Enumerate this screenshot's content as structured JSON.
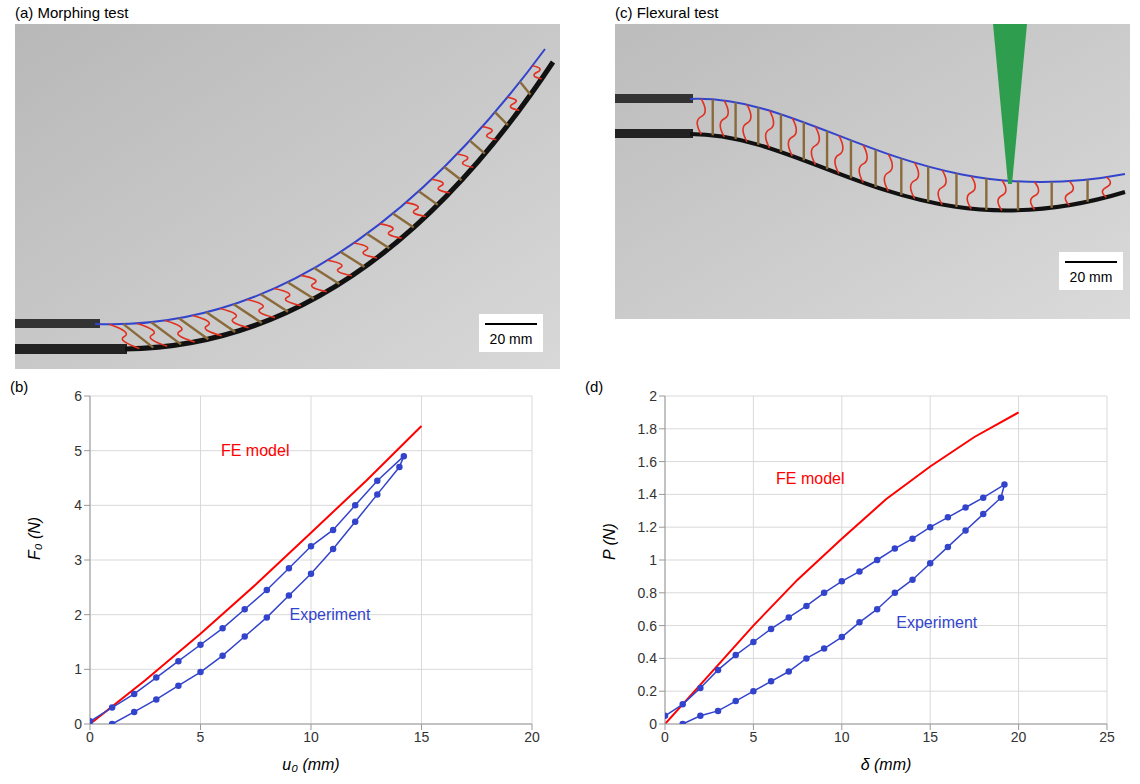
{
  "photos": [
    {
      "title": "(a) Morphing test",
      "scale_bar": "20 mm"
    },
    {
      "title": "(c) Flexural test",
      "scale_bar": "20 mm"
    }
  ],
  "chart_data": [
    {
      "type": "line",
      "title": "(b)",
      "x_label": "u₀ (mm)",
      "y_label": "F₀ (N)",
      "xlim": [
        0,
        20
      ],
      "xticks": [
        0,
        5,
        10,
        15,
        20
      ],
      "ylim": [
        0,
        6
      ],
      "yticks": [
        0,
        1,
        2,
        3,
        4,
        5,
        6
      ],
      "grid": true,
      "series": [
        {
          "name": "FE model",
          "color": "#ff0000",
          "marker": "none",
          "x": [
            0,
            2.5,
            5,
            7.5,
            10,
            12.5,
            15
          ],
          "values": [
            0,
            0.8,
            1.65,
            2.55,
            3.5,
            4.45,
            5.45
          ]
        },
        {
          "name": "Experiment",
          "color": "#3344cc",
          "marker": "circle",
          "x": [
            0,
            1,
            2,
            3,
            4,
            5,
            6,
            7,
            8,
            9,
            10,
            11,
            12,
            13,
            14.2,
            14,
            13,
            12,
            11,
            10,
            9,
            8,
            7,
            6,
            5,
            4,
            3,
            2,
            1
          ],
          "values": [
            0.05,
            0.3,
            0.55,
            0.85,
            1.15,
            1.45,
            1.75,
            2.1,
            2.45,
            2.85,
            3.25,
            3.55,
            4.0,
            4.45,
            4.9,
            4.7,
            4.2,
            3.7,
            3.2,
            2.75,
            2.35,
            1.95,
            1.6,
            1.25,
            0.95,
            0.7,
            0.45,
            0.22,
            0.0
          ]
        }
      ],
      "annotations": [
        {
          "text": "FE model",
          "x": 5.7,
          "y": 5.0,
          "color": "#ff0000"
        },
        {
          "text": "Experiment",
          "x": 8.8,
          "y": 2.0,
          "color": "#3344cc"
        }
      ]
    },
    {
      "type": "line",
      "title": "(d)",
      "x_label": "δ (mm)",
      "y_label": "P (N)",
      "xlim": [
        0,
        25
      ],
      "xticks": [
        0,
        5,
        10,
        15,
        20,
        25
      ],
      "ylim": [
        0,
        2
      ],
      "yticks": [
        0,
        0.2,
        0.4,
        0.6,
        0.8,
        1,
        1.2,
        1.4,
        1.6,
        1.8,
        2
      ],
      "grid": true,
      "series": [
        {
          "name": "FE model",
          "color": "#ff0000",
          "marker": "none",
          "x": [
            0,
            2.5,
            5,
            7.5,
            10,
            12.5,
            15,
            17.5,
            20
          ],
          "values": [
            0,
            0.3,
            0.6,
            0.88,
            1.13,
            1.37,
            1.57,
            1.75,
            1.9
          ]
        },
        {
          "name": "Experiment",
          "color": "#3344cc",
          "marker": "circle",
          "x": [
            0,
            1,
            2,
            3,
            4,
            5,
            6,
            7,
            8,
            9,
            10,
            11,
            12,
            13,
            14,
            15,
            16,
            17,
            18,
            19.2,
            19,
            18,
            17,
            16,
            15,
            14,
            13,
            12,
            11,
            10,
            9,
            8,
            7,
            6,
            5,
            4,
            3,
            2,
            1
          ],
          "values": [
            0.05,
            0.12,
            0.22,
            0.33,
            0.42,
            0.5,
            0.58,
            0.65,
            0.72,
            0.8,
            0.87,
            0.93,
            1.0,
            1.07,
            1.13,
            1.2,
            1.26,
            1.32,
            1.38,
            1.46,
            1.38,
            1.28,
            1.18,
            1.08,
            0.98,
            0.88,
            0.8,
            0.7,
            0.62,
            0.53,
            0.46,
            0.4,
            0.32,
            0.26,
            0.2,
            0.14,
            0.08,
            0.05,
            0.0
          ]
        }
      ],
      "annotations": [
        {
          "text": "FE model",
          "x": 6,
          "y": 1.5,
          "color": "#ff0000"
        },
        {
          "text": "Experiment",
          "x": 12.8,
          "y": 0.62,
          "color": "#3344cc"
        }
      ]
    }
  ]
}
